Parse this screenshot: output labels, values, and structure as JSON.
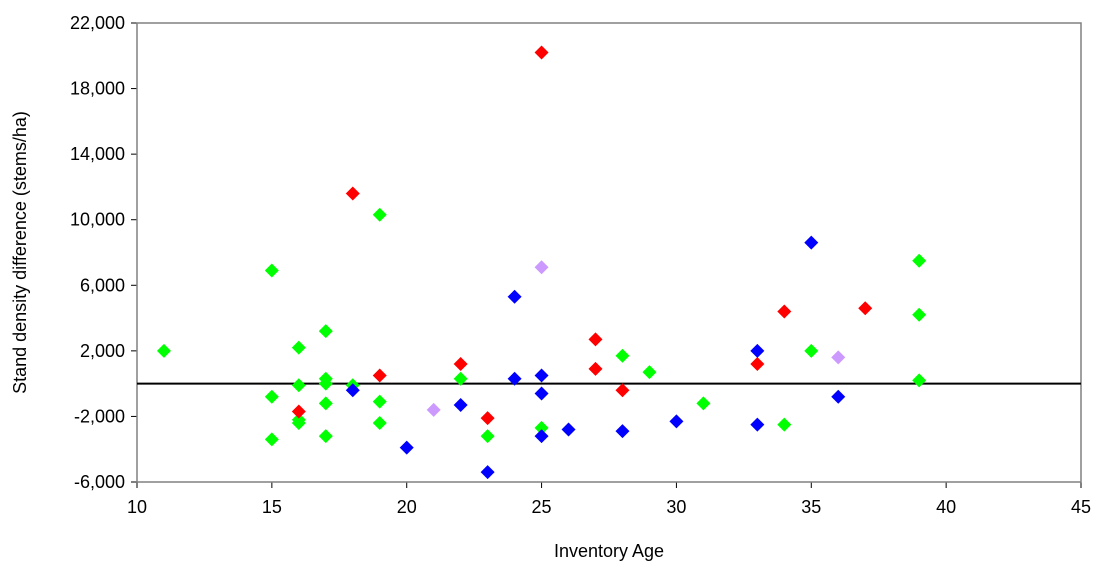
{
  "chart_data": {
    "type": "scatter",
    "title": "",
    "xlabel": "Inventory Age",
    "ylabel": "Stand density difference (stems/ha)",
    "xlim": [
      10,
      45
    ],
    "ylim": [
      -6000,
      22000
    ],
    "xticks": [
      10,
      15,
      20,
      25,
      30,
      35,
      40,
      45
    ],
    "yticks": [
      -6000,
      -2000,
      2000,
      6000,
      10000,
      14000,
      18000,
      22000
    ],
    "xtick_labels": [
      "10",
      "15",
      "20",
      "25",
      "30",
      "35",
      "40",
      "45"
    ],
    "ytick_labels": [
      "-6,000",
      "-2,000",
      "2,000",
      "6,000",
      "10,000",
      "14,000",
      "18,000",
      "22,000"
    ],
    "reference_line_y": 0,
    "grid": false,
    "legend": "none",
    "marker": "diamond",
    "series": [
      {
        "color": "#00ff00",
        "points": [
          [
            11,
            2000
          ],
          [
            15,
            6900
          ],
          [
            15,
            -800
          ],
          [
            15,
            -3400
          ],
          [
            16,
            2200
          ],
          [
            16,
            -100
          ],
          [
            16,
            -2200
          ],
          [
            16,
            -2400
          ],
          [
            17,
            3200
          ],
          [
            17,
            300
          ],
          [
            17,
            0
          ],
          [
            17,
            -1200
          ],
          [
            17,
            -3200
          ],
          [
            18,
            -100
          ],
          [
            19,
            10300
          ],
          [
            19,
            -1100
          ],
          [
            19,
            -2400
          ],
          [
            22,
            300
          ],
          [
            23,
            -3200
          ],
          [
            25,
            -2700
          ],
          [
            28,
            1700
          ],
          [
            29,
            700
          ],
          [
            31,
            -1200
          ],
          [
            34,
            -2500
          ],
          [
            35,
            2000
          ],
          [
            39,
            7500
          ],
          [
            39,
            4200
          ],
          [
            39,
            200
          ]
        ]
      },
      {
        "color": "#ff0000",
        "points": [
          [
            16,
            -1700
          ],
          [
            18,
            11600
          ],
          [
            19,
            500
          ],
          [
            22,
            1200
          ],
          [
            23,
            -2100
          ],
          [
            25,
            20200
          ],
          [
            27,
            2700
          ],
          [
            27,
            900
          ],
          [
            28,
            -400
          ],
          [
            33,
            1200
          ],
          [
            34,
            4400
          ],
          [
            37,
            4600
          ]
        ]
      },
      {
        "color": "#0000ff",
        "points": [
          [
            18,
            -400
          ],
          [
            20,
            -3900
          ],
          [
            22,
            -1300
          ],
          [
            23,
            -5400
          ],
          [
            24,
            5300
          ],
          [
            24,
            300
          ],
          [
            25,
            500
          ],
          [
            25,
            -600
          ],
          [
            25,
            -3200
          ],
          [
            26,
            -2800
          ],
          [
            28,
            -2900
          ],
          [
            30,
            -2300
          ],
          [
            33,
            2000
          ],
          [
            33,
            -2500
          ],
          [
            35,
            8600
          ],
          [
            36,
            -800
          ]
        ]
      },
      {
        "color": "#cc99ff",
        "points": [
          [
            21,
            -1600
          ],
          [
            25,
            7100
          ],
          [
            36,
            1600
          ]
        ]
      }
    ]
  }
}
